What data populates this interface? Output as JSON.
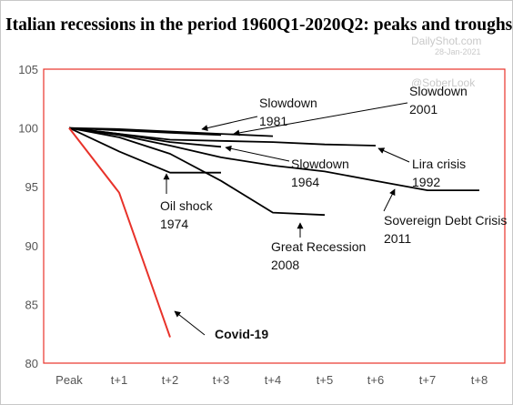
{
  "chart_data": {
    "type": "line",
    "title": "Italian recessions in the period 1960Q1-2020Q2: peaks and troughs",
    "x_categories": [
      "Peak",
      "t+1",
      "t+2",
      "t+3",
      "t+4",
      "t+5",
      "t+6",
      "t+7",
      "t+8"
    ],
    "ylim": [
      80,
      105
    ],
    "yticks": [
      80,
      85,
      90,
      95,
      100,
      105
    ],
    "grid": false,
    "series": [
      {
        "name": "Slowdown 1981",
        "color": "#000000",
        "values": [
          100,
          99.9,
          99.7,
          99.5,
          99.3
        ]
      },
      {
        "name": "Slowdown 2001",
        "color": "#000000",
        "values": [
          100,
          99.8,
          99.6,
          99.4
        ]
      },
      {
        "name": "Slowdown 1964",
        "color": "#000000",
        "values": [
          100,
          99.5,
          98.8,
          98.4
        ]
      },
      {
        "name": "Lira crisis 1992",
        "color": "#000000",
        "values": [
          100,
          99.5,
          99.0,
          98.9,
          98.8,
          98.6,
          98.5
        ]
      },
      {
        "name": "Sovereign Debt Crisis 2011",
        "color": "#000000",
        "values": [
          100,
          99.4,
          98.5,
          97.5,
          96.8,
          96.3,
          95.5,
          94.7,
          94.7
        ]
      },
      {
        "name": "Oil shock 1974",
        "color": "#000000",
        "values": [
          100,
          98.0,
          96.2,
          96.2
        ]
      },
      {
        "name": "Great Recession 2008",
        "color": "#000000",
        "values": [
          100,
          99.2,
          97.8,
          95.5,
          92.8,
          92.6
        ]
      },
      {
        "name": "Covid-19",
        "color": "#e8322a",
        "values": [
          100,
          94.5,
          82.2
        ]
      }
    ],
    "annotations": [
      {
        "lines": [
          "Slowdown",
          "1981"
        ],
        "bold": false
      },
      {
        "lines": [
          "Slowdown",
          "2001"
        ],
        "bold": false
      },
      {
        "lines": [
          "Slowdown",
          "1964"
        ],
        "bold": false
      },
      {
        "lines": [
          "Lira crisis",
          "1992"
        ],
        "bold": false
      },
      {
        "lines": [
          "Oil shock",
          "1974"
        ],
        "bold": false
      },
      {
        "lines": [
          "Sovereign Debt Crisis",
          "2011"
        ],
        "bold": false
      },
      {
        "lines": [
          "Great Recession",
          "2008"
        ],
        "bold": false
      },
      {
        "lines": [
          "Covid-19"
        ],
        "bold": true
      }
    ]
  },
  "watermark": {
    "brand": "DailyShot.com",
    "date": "28-Jan-2021",
    "handle": "@SoberLook"
  },
  "colors": {
    "plot_border": "#e8322a",
    "covid_line": "#e8322a",
    "lines": "#000000"
  }
}
